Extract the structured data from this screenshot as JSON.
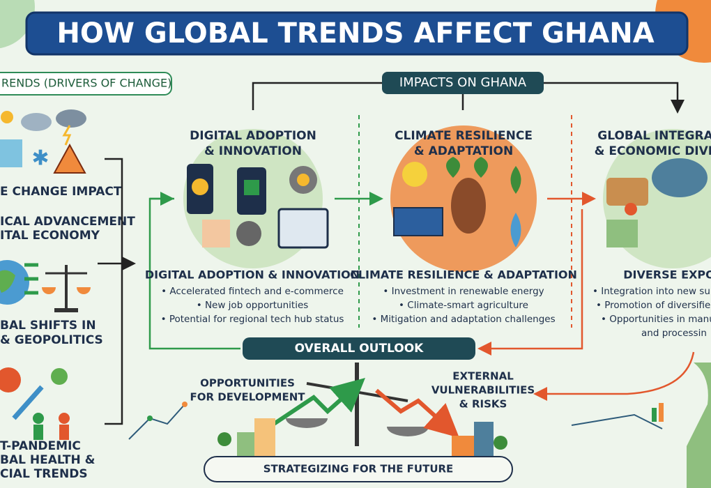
{
  "title": "HOW GLOBAL TRENDS AFFECT GHANA",
  "drivers": {
    "header": "RENDS (DRIVERS OF CHANGE)",
    "items": [
      [
        "E CHANGE IMPACT"
      ],
      [
        "ICAL ADVANCEMENT",
        "ITAL ECONOMY"
      ],
      [
        "BAL SHIFTS IN",
        "& GEOPOLITICS"
      ],
      [
        "T-PANDEMIC",
        "BAL HEALTH &",
        "CIAL TRENDS"
      ]
    ]
  },
  "impacts_header": "IMPACTS ON GHANA",
  "columns": [
    {
      "circle_title": [
        "DIGITAL ADOPTION",
        "& INNOVATION"
      ],
      "heading": "DIGITAL ADOPTION & INNOVATION",
      "bullets": [
        "• Accelerated fintech and e-commerce",
        "• New job opportunities",
        "• Potential for regional tech hub status"
      ]
    },
    {
      "circle_title": [
        "CLIMATE RESILIENCE",
        "& ADAPTATION"
      ],
      "heading": "CLIMATE RESILIENCE & ADAPTATION",
      "bullets": [
        "• Investment in renewable energy",
        "• Climate-smart agriculture",
        "• Mitigation and adaptation challenges"
      ]
    },
    {
      "circle_title": [
        "GLOBAL INTEGRA",
        "& ECONOMIC DIVE"
      ],
      "heading": "DIVERSE EXPO",
      "bullets": [
        "• Integration into new su",
        "• Promotion of diversifie",
        "• Opportunities in manu",
        "and processin"
      ]
    }
  ],
  "outlook": {
    "header": "OVERALL OUTLOOK",
    "left": [
      "OPPORTUNITIES",
      "FOR DEVELOPMENT"
    ],
    "right": [
      "EXTERNAL",
      "VULNERABILITIES",
      "& RISKS"
    ],
    "footer": "STRATEGIZING FOR THE FUTURE"
  }
}
